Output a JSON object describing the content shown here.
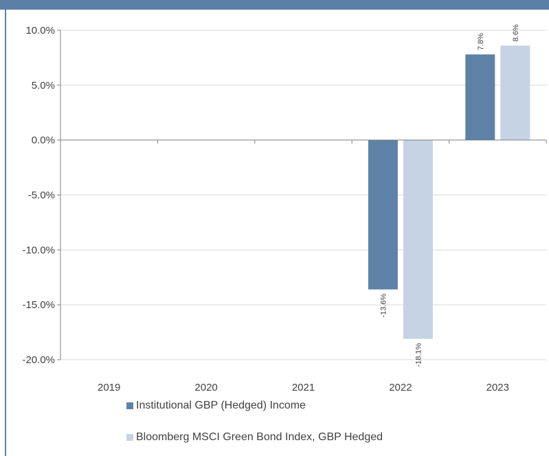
{
  "colors": {
    "frame": "#5b7fa6",
    "series1": "#5e82a6",
    "series2": "#c6d3e4",
    "grid": "#d9d9d9",
    "axis": "#7f7f7f"
  },
  "chart_data": {
    "type": "bar",
    "categories": [
      "2019",
      "2020",
      "2021",
      "2022",
      "2023"
    ],
    "series": [
      {
        "name": "Institutional GBP (Hedged) Income",
        "values": [
          null,
          null,
          null,
          -13.6,
          7.8
        ]
      },
      {
        "name": "Bloomberg MSCI Green Bond Index, GBP Hedged",
        "values": [
          null,
          null,
          null,
          -18.1,
          8.6
        ]
      }
    ],
    "ylim": [
      -20,
      10
    ],
    "ytick_step": 5,
    "y_format": "percent_1dp",
    "grid": true,
    "legend_position": "bottom",
    "title": "",
    "xlabel": "",
    "ylabel": ""
  }
}
